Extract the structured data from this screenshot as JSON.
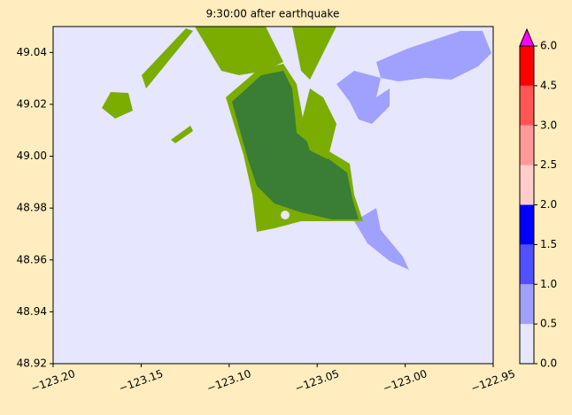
{
  "chart_data": {
    "type": "map",
    "title": "9:30:00 after earthquake",
    "xlim": [
      -123.2,
      -122.95
    ],
    "xticks": [
      {
        "value": -123.2,
        "label": "−123.20"
      },
      {
        "value": -123.15,
        "label": "−123.15"
      },
      {
        "value": -123.1,
        "label": "−123.10"
      },
      {
        "value": -123.05,
        "label": "−123.05"
      },
      {
        "value": -123.0,
        "label": "−123.00"
      },
      {
        "value": -122.95,
        "label": "−122.95"
      }
    ],
    "ylim": [
      48.92,
      49.05
    ],
    "yticks": [
      48.92,
      48.94,
      48.96,
      48.98,
      {
        "value": 49.0,
        "label": "49.00"
      },
      49.02,
      49.04
    ],
    "colorbar": {
      "ticks": [
        {
          "value": 0.0,
          "label": "0.0"
        },
        0.5,
        {
          "value": 1.0,
          "label": "1.0"
        },
        1.5,
        {
          "value": 2.0,
          "label": "2.0"
        },
        2.5,
        {
          "value": 3.0,
          "label": "3.0"
        },
        4.5,
        {
          "value": 6.0,
          "label": "6.0"
        }
      ],
      "colors": [
        "#e6e6ff",
        "#a0a0ff",
        "#5050ff",
        "#0000ff",
        "#ffcccc",
        "#ff9999",
        "#ff5555",
        "#ff0000"
      ],
      "extend_color": "#ff00ff"
    }
  }
}
